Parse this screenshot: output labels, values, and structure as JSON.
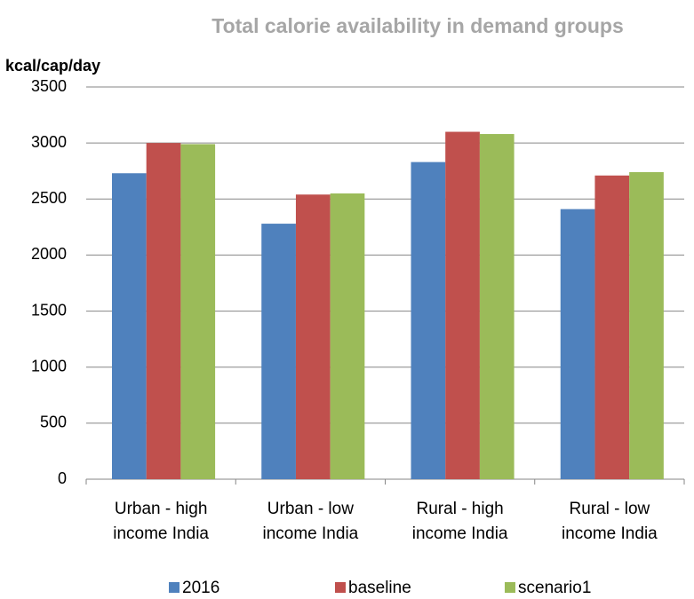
{
  "chart_data": {
    "type": "bar",
    "title": "Total calorie availability in demand groups",
    "y_label": "kcal/cap/day",
    "categories": [
      "Urban - high income India",
      "Urban - low income India",
      "Rural - high income India",
      "Rural - low income India"
    ],
    "series": [
      {
        "name": "2016",
        "color": "#4f81bd",
        "values": [
          2730,
          2280,
          2830,
          2410
        ]
      },
      {
        "name": "baseline",
        "color": "#c0504d",
        "values": [
          3000,
          2540,
          3100,
          2710
        ]
      },
      {
        "name": "scenario1",
        "color": "#9bbb59",
        "values": [
          2990,
          2550,
          3080,
          2740
        ]
      }
    ],
    "ylim": [
      0,
      3500
    ],
    "yticks": [
      0,
      500,
      1000,
      1500,
      2000,
      2500,
      3000,
      3500
    ],
    "grid": true,
    "legend": "bottom"
  }
}
